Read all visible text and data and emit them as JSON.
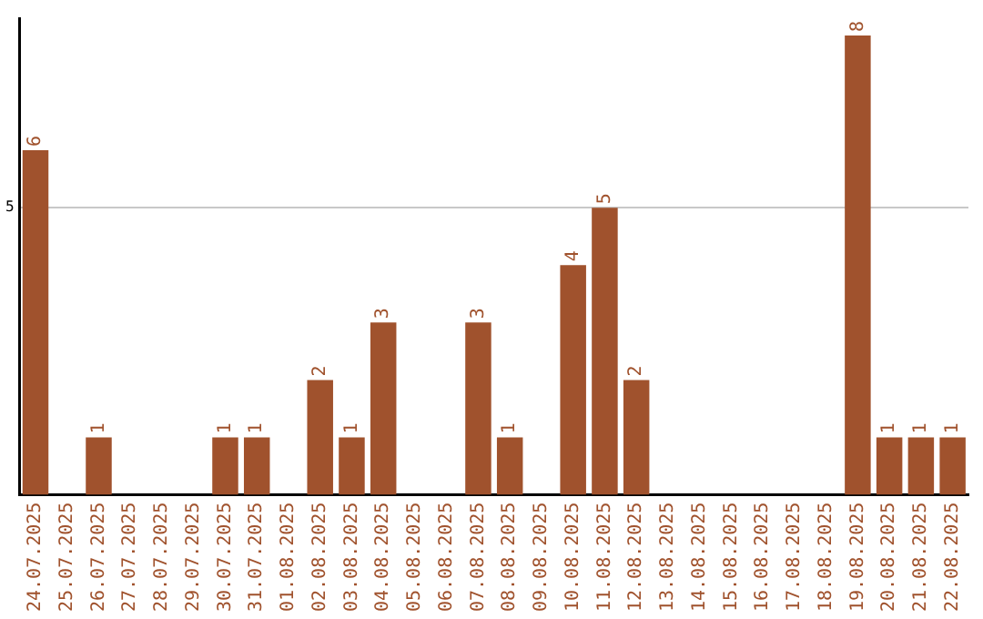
{
  "chart_data": {
    "type": "bar",
    "categories": [
      "24.07.2025",
      "25.07.2025",
      "26.07.2025",
      "27.07.2025",
      "28.07.2025",
      "29.07.2025",
      "30.07.2025",
      "31.07.2025",
      "01.08.2025",
      "02.08.2025",
      "03.08.2025",
      "04.08.2025",
      "05.08.2025",
      "06.08.2025",
      "07.08.2025",
      "08.08.2025",
      "09.08.2025",
      "10.08.2025",
      "11.08.2025",
      "12.08.2025",
      "13.08.2025",
      "14.08.2025",
      "15.08.2025",
      "16.08.2025",
      "17.08.2025",
      "18.08.2025",
      "19.08.2025",
      "20.08.2025",
      "21.08.2025",
      "22.08.2025"
    ],
    "values": [
      6,
      0,
      1,
      0,
      0,
      0,
      1,
      1,
      0,
      2,
      1,
      3,
      0,
      0,
      3,
      1,
      0,
      4,
      5,
      2,
      0,
      0,
      0,
      0,
      0,
      0,
      8,
      1,
      1,
      1
    ],
    "value_labels": [
      "6",
      null,
      "1",
      null,
      null,
      null,
      "1",
      "1",
      null,
      "2",
      "1",
      "3",
      null,
      null,
      "3",
      "1",
      null,
      "4",
      "5",
      "2",
      null,
      null,
      null,
      null,
      null,
      null,
      "8",
      "1",
      "1",
      "1"
    ],
    "color": "#a0522d",
    "ylim": [
      0,
      8.3
    ],
    "yticks": [
      5
    ],
    "grid": "y",
    "legend": false
  }
}
